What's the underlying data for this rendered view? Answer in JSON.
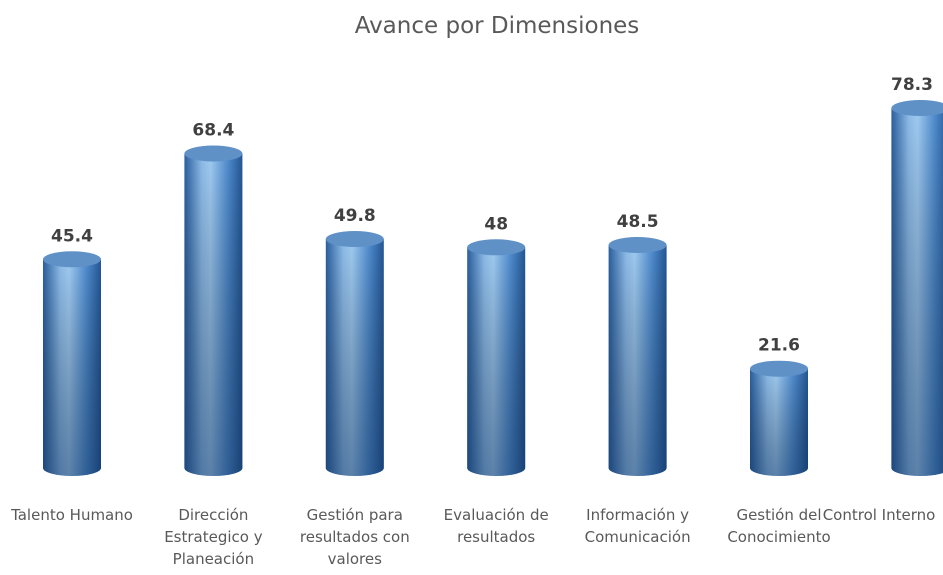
{
  "chart_data": {
    "type": "bar",
    "title": "Avance por Dimensiones",
    "categories": [
      "Talento Humano",
      "Dirección Estrategico y Planeación",
      "Gestión para resultados con valores",
      "Evaluación de resultados",
      "Información y Comunicación",
      "Gestión del Conocimiento",
      "Control Interno"
    ],
    "values": [
      45.4,
      68.4,
      49.8,
      48,
      48.5,
      21.6,
      78.3
    ],
    "color": "#3b78bf"
  }
}
